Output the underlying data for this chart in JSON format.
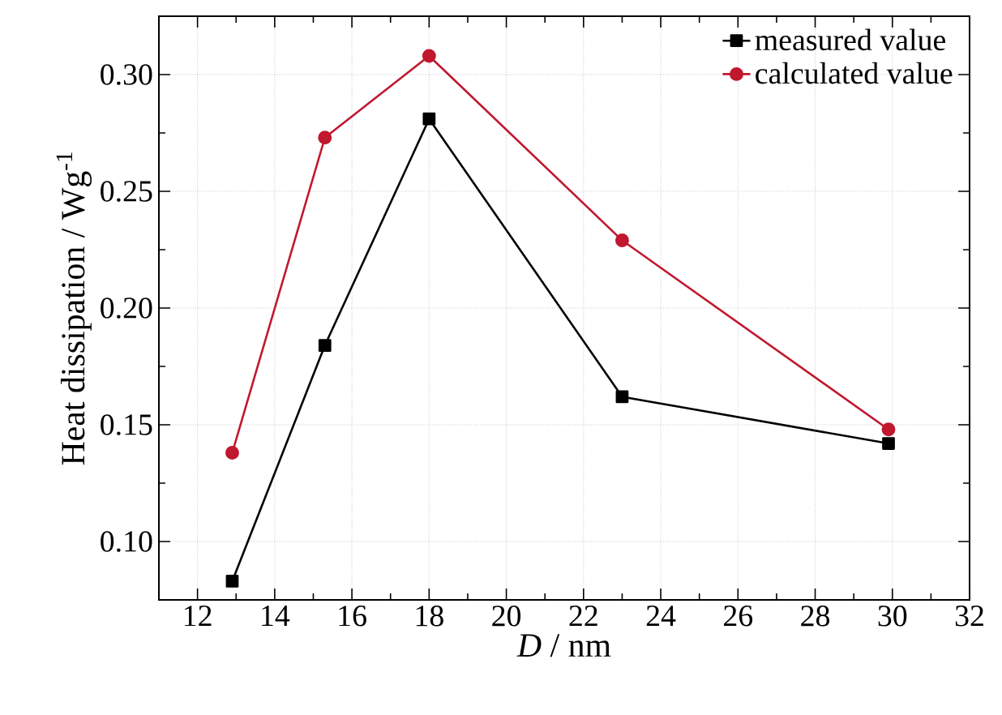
{
  "chart_data": {
    "type": "line",
    "xlabel": "*D* / nm",
    "ylabel": "Heat dissipation / Wg$^{-1}$",
    "xlim": [
      11,
      32
    ],
    "ylim": [
      0.075,
      0.325
    ],
    "xticks": [
      12,
      14,
      16,
      18,
      20,
      22,
      24,
      26,
      28,
      30,
      32
    ],
    "yticks": [
      {
        "value": 0.1,
        "label": "0.10"
      },
      {
        "value": 0.15,
        "label": "0.15"
      },
      {
        "value": 0.2,
        "label": "0.20"
      },
      {
        "value": 0.25,
        "label": "0.25"
      },
      {
        "value": 0.3,
        "label": "0.30"
      }
    ],
    "grid": true,
    "legend": "top right",
    "series": [
      {
        "name": "measured value",
        "color": "#000000",
        "marker": "square",
        "x": [
          12.9,
          15.3,
          18.0,
          23.0,
          29.9
        ],
        "values": [
          0.083,
          0.184,
          0.281,
          0.162,
          0.142
        ]
      },
      {
        "name": "calculated value",
        "color": "#c0182e",
        "marker": "circle",
        "x": [
          12.9,
          15.3,
          18.0,
          23.0,
          29.9
        ],
        "values": [
          0.138,
          0.273,
          0.308,
          0.229,
          0.148
        ]
      }
    ]
  }
}
